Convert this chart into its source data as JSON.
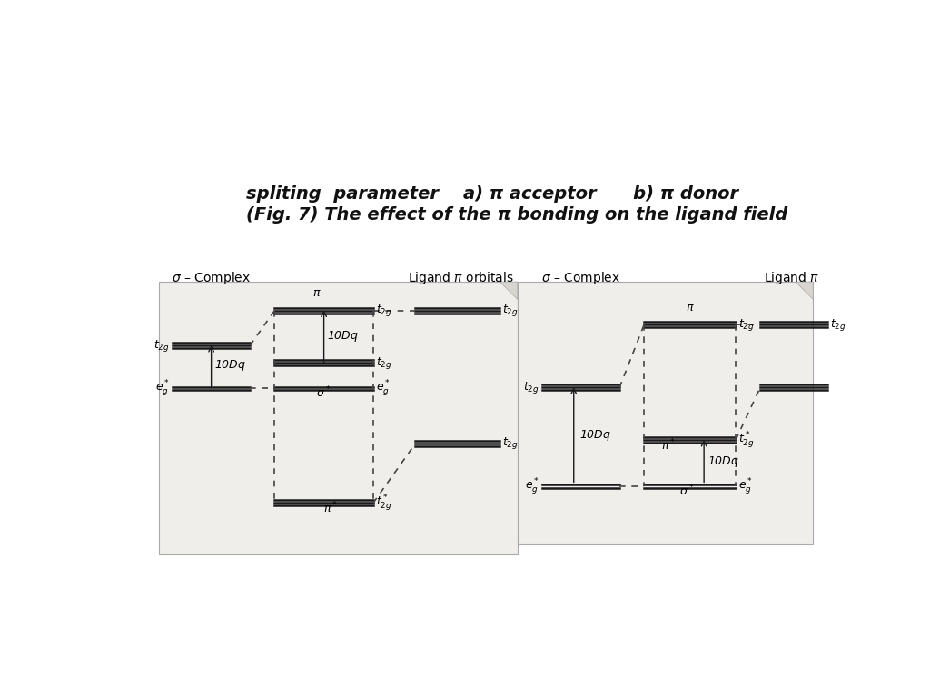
{
  "bg_color": "#ffffff",
  "panel_color": "#f0eeeb",
  "line_color": "#1a1a1a",
  "dashed_color": "#444444",
  "caption_line1": "(Fig. 7) The effect of the π bonding on the ligand field",
  "caption_line2": "spliting  parameter    a) π acceptor      b) π donor"
}
